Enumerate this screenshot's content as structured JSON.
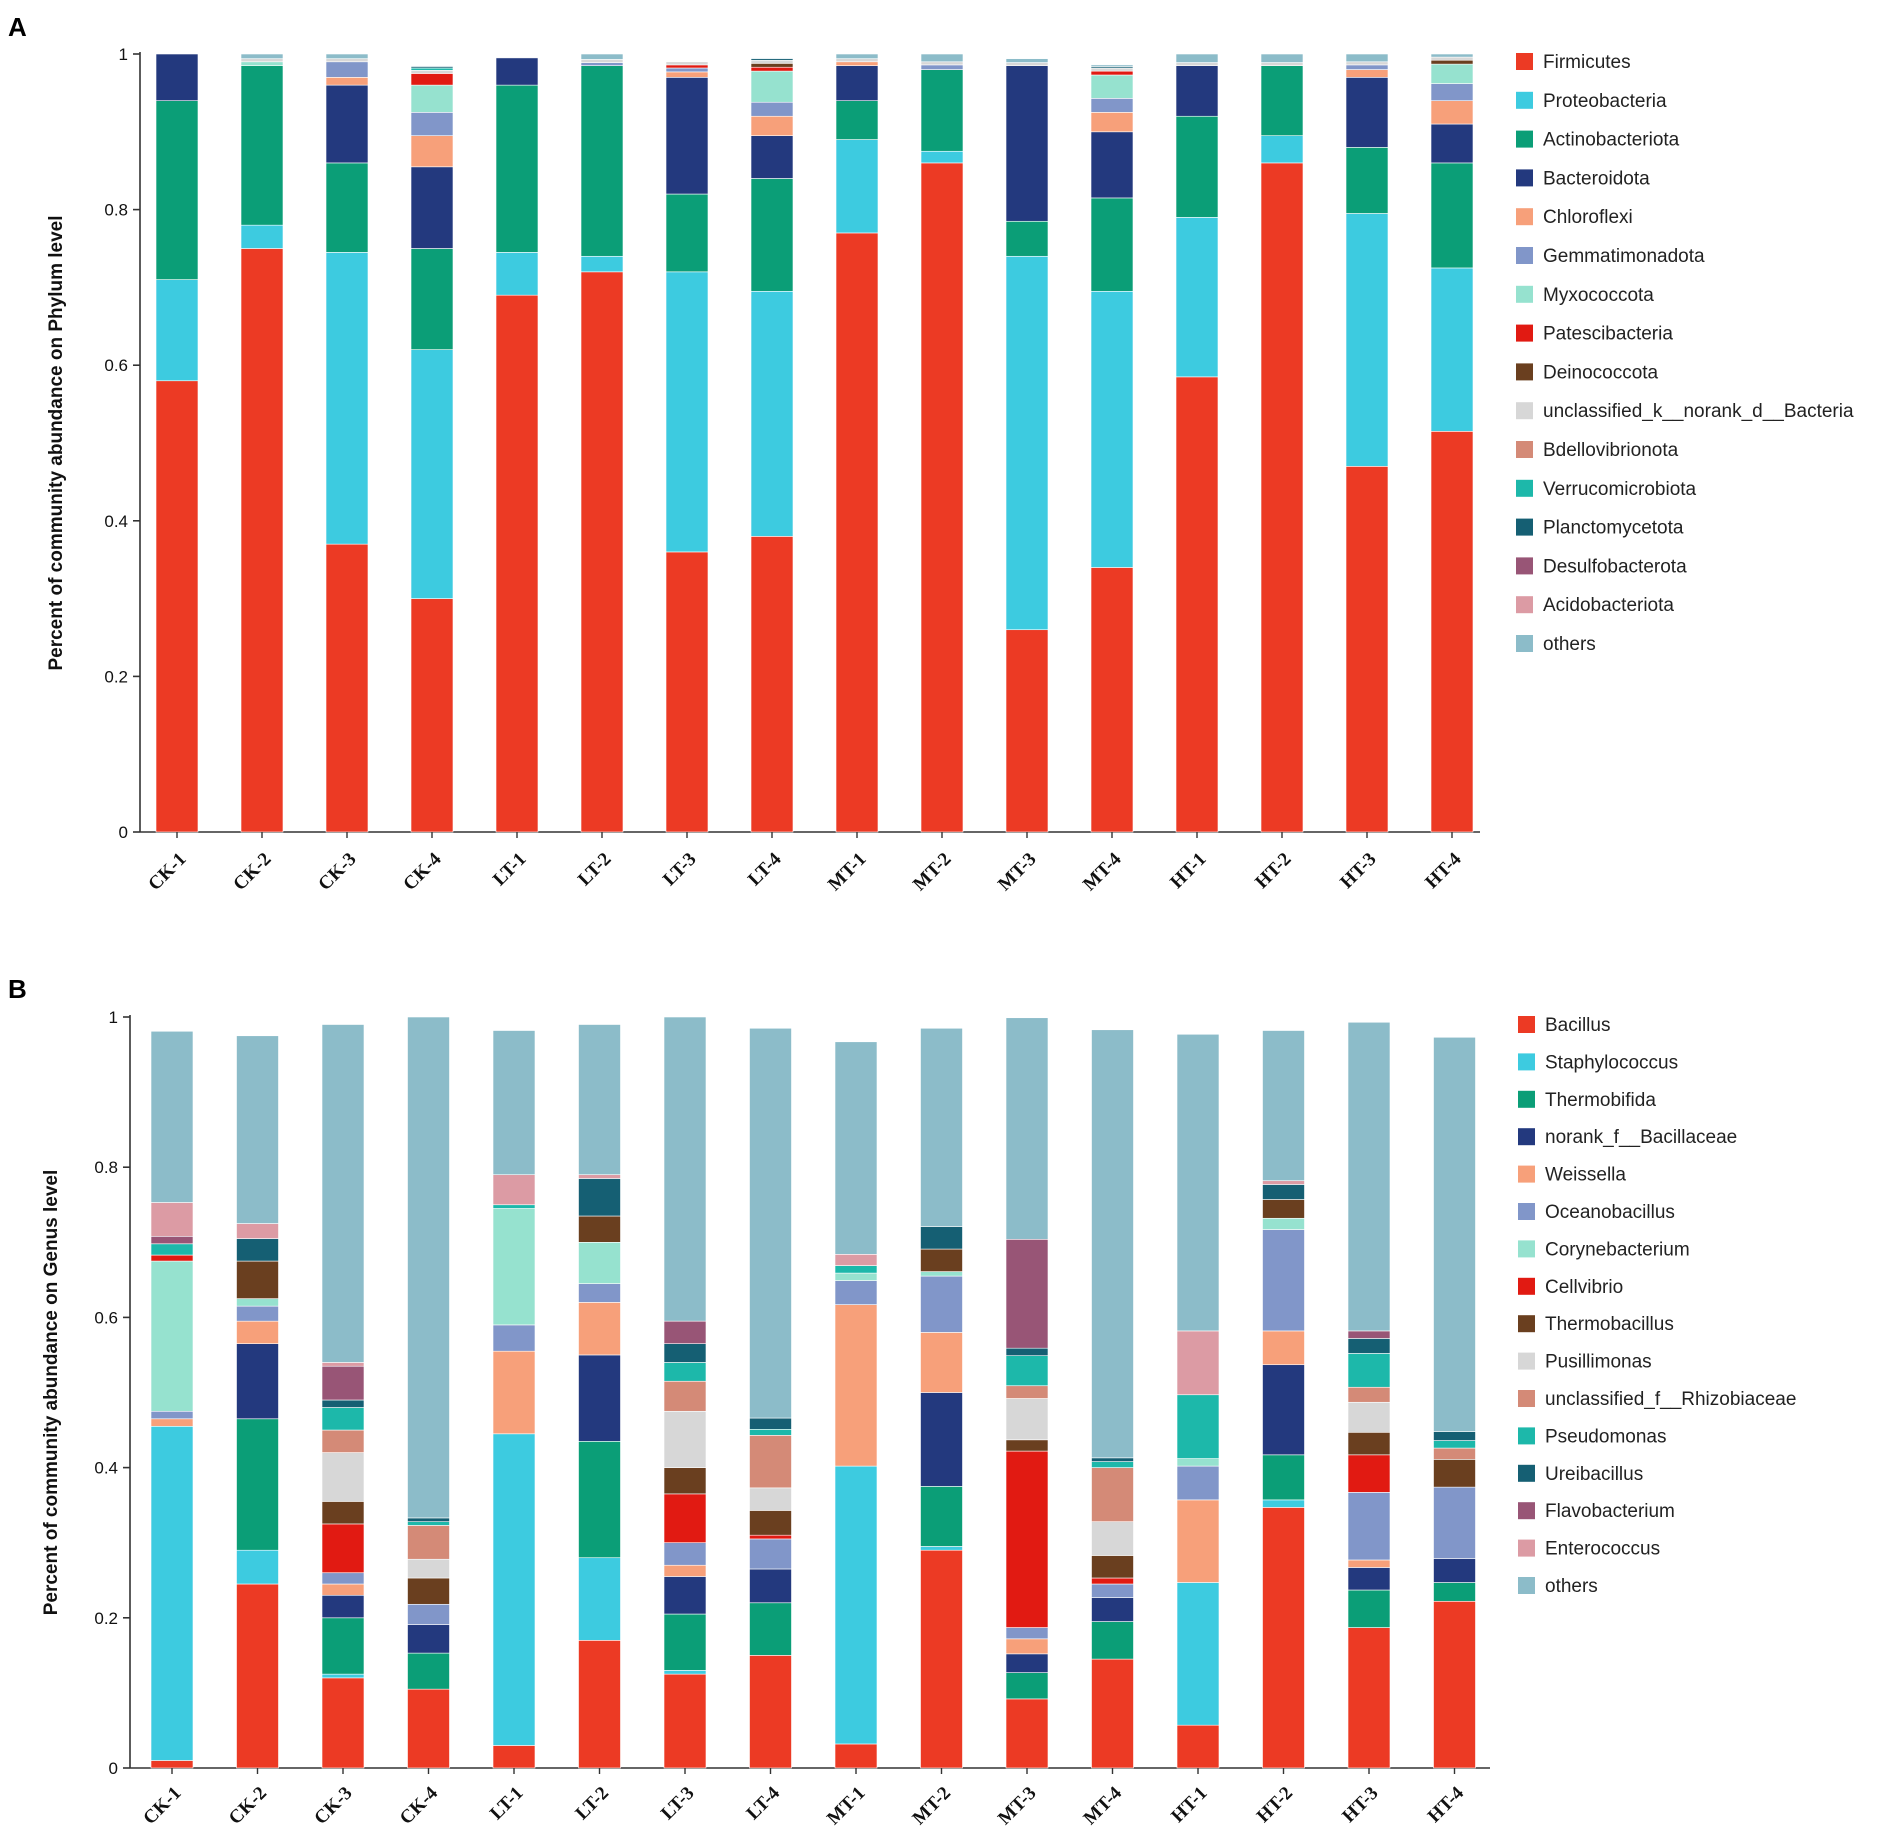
{
  "chart_data": [
    {
      "panel": "A",
      "type": "bar",
      "stacked": true,
      "title": "",
      "xlabel": "",
      "ylabel": "Percent of community abundance on Phylum level",
      "ylim": [
        0,
        1
      ],
      "yticks": [
        0,
        0.2,
        0.4,
        0.6,
        0.8,
        1
      ],
      "ytick_labels": [
        "0",
        "0.2",
        "0.4",
        "0.6",
        "0.8",
        "1"
      ],
      "legend_position": "right",
      "categories": [
        "CK-1",
        "CK-2",
        "CK-3",
        "CK-4",
        "LT-1",
        "LT-2",
        "LT-3",
        "LT-4",
        "MT-1",
        "MT-2",
        "MT-3",
        "MT-4",
        "HT-1",
        "HT-2",
        "HT-3",
        "HT-4"
      ],
      "series": [
        {
          "name": "Firmicutes",
          "color": "#ec3a24",
          "values": [
            0.58,
            0.75,
            0.37,
            0.3,
            0.69,
            0.72,
            0.36,
            0.38,
            0.77,
            0.86,
            0.26,
            0.34,
            0.585,
            0.86,
            0.47,
            0.515
          ]
        },
        {
          "name": "Proteobacteria",
          "color": "#3dcbe0",
          "values": [
            0.13,
            0.03,
            0.375,
            0.32,
            0.055,
            0.02,
            0.36,
            0.315,
            0.12,
            0.015,
            0.48,
            0.355,
            0.205,
            0.035,
            0.325,
            0.21
          ]
        },
        {
          "name": "Actinobacteriota",
          "color": "#0b9e77",
          "values": [
            0.23,
            0.205,
            0.115,
            0.13,
            0.215,
            0.245,
            0.1,
            0.145,
            0.05,
            0.105,
            0.045,
            0.12,
            0.13,
            0.09,
            0.085,
            0.135
          ]
        },
        {
          "name": "Bacteroidota",
          "color": "#23397e",
          "values": [
            0.06,
            0.0,
            0.1,
            0.105,
            0.035,
            0.0,
            0.15,
            0.055,
            0.045,
            0.0,
            0.2,
            0.085,
            0.065,
            0.0,
            0.09,
            0.05
          ]
        },
        {
          "name": "Chloroflexi",
          "color": "#f7a07a",
          "values": [
            0.0,
            0.0,
            0.01,
            0.04,
            0.0,
            0.0,
            0.007,
            0.025,
            0.005,
            0.0,
            0.0,
            0.025,
            0.0,
            0.0,
            0.01,
            0.03
          ]
        },
        {
          "name": "Gemmatimonadota",
          "color": "#8196c9",
          "values": [
            0.0,
            0.0,
            0.02,
            0.03,
            0.0,
            0.004,
            0.005,
            0.018,
            0.0,
            0.006,
            0.0,
            0.018,
            0.0,
            0.0,
            0.006,
            0.022
          ]
        },
        {
          "name": "Myxococcota",
          "color": "#96e2cf",
          "values": [
            0.0,
            0.005,
            0.0,
            0.035,
            0.0,
            0.0,
            0.0,
            0.04,
            0.0,
            0.0,
            0.0,
            0.03,
            0.0,
            0.0,
            0.0,
            0.025
          ]
        },
        {
          "name": "Patescibacteria",
          "color": "#e11a12",
          "values": [
            0.0,
            0.0,
            0.0,
            0.015,
            0.0,
            0.0,
            0.004,
            0.005,
            0.0,
            0.0,
            0.0,
            0.005,
            0.0,
            0.0,
            0.0,
            0.0
          ]
        },
        {
          "name": "Deinococcota",
          "color": "#6a3f1f",
          "values": [
            0.0,
            0.0,
            0.0,
            0.0,
            0.0,
            0.0,
            0.0,
            0.005,
            0.0,
            0.0,
            0.0,
            0.0,
            0.0,
            0.0,
            0.0,
            0.005
          ]
        },
        {
          "name": "unclassified_k__norank_d__Bacteria",
          "color": "#d7d7d7",
          "values": [
            0.0,
            0.004,
            0.004,
            0.004,
            0.0,
            0.004,
            0.004,
            0.004,
            0.004,
            0.004,
            0.004,
            0.004,
            0.004,
            0.004,
            0.004,
            0.004
          ]
        },
        {
          "name": "Bdellovibrionota",
          "color": "#d48a77",
          "values": [
            0.0,
            0.0,
            0.0,
            0.0,
            0.0,
            0.0,
            0.0,
            0.0,
            0.0,
            0.0,
            0.0,
            0.0,
            0.0,
            0.0,
            0.0,
            0.0
          ]
        },
        {
          "name": "Verrucomicrobiota",
          "color": "#1db8aa",
          "values": [
            0.0,
            0.0,
            0.0,
            0.003,
            0.0,
            0.0,
            0.0,
            0.0,
            0.0,
            0.0,
            0.0,
            0.0,
            0.0,
            0.0,
            0.0,
            0.0
          ]
        },
        {
          "name": "Planctomycetota",
          "color": "#155f73",
          "values": [
            0.0,
            0.0,
            0.0,
            0.002,
            0.0,
            0.0,
            0.0,
            0.002,
            0.0,
            0.0,
            0.0,
            0.002,
            0.0,
            0.0,
            0.0,
            0.0
          ]
        },
        {
          "name": "Desulfobacterota",
          "color": "#985576",
          "values": [
            0.0,
            0.0,
            0.0,
            0.0,
            0.0,
            0.0,
            0.0,
            0.0,
            0.0,
            0.0,
            0.0,
            0.0,
            0.0,
            0.0,
            0.0,
            0.0
          ]
        },
        {
          "name": "Acidobacteriota",
          "color": "#dc9ba4",
          "values": [
            0.0,
            0.0,
            0.0,
            0.0,
            0.0,
            0.0,
            0.0,
            0.0,
            0.0,
            0.0,
            0.0,
            0.0,
            0.0,
            0.0,
            0.0,
            0.0
          ]
        },
        {
          "name": "others",
          "color": "#8cbcc9",
          "values": [
            0.0,
            0.006,
            0.006,
            0.001,
            0.0,
            0.007,
            0.0,
            0.001,
            0.006,
            0.01,
            0.005,
            0.002,
            0.011,
            0.011,
            0.01,
            0.004
          ]
        }
      ]
    },
    {
      "panel": "B",
      "type": "bar",
      "stacked": true,
      "title": "",
      "xlabel": "",
      "ylabel": "Percent of community abundance on Genus level",
      "ylim": [
        0,
        1
      ],
      "yticks": [
        0,
        0.2,
        0.4,
        0.6,
        0.8,
        1
      ],
      "ytick_labels": [
        "0",
        "0.2",
        "0.4",
        "0.6",
        "0.8",
        "1"
      ],
      "legend_position": "right",
      "categories": [
        "CK-1",
        "CK-2",
        "CK-3",
        "CK-4",
        "LT-1",
        "LT-2",
        "LT-3",
        "LT-4",
        "MT-1",
        "MT-2",
        "MT-3",
        "MT-4",
        "HT-1",
        "HT-2",
        "HT-3",
        "HT-4"
      ],
      "series": [
        {
          "name": "Bacillus",
          "color": "#ec3a24",
          "values": [
            0.01,
            0.245,
            0.12,
            0.105,
            0.03,
            0.17,
            0.125,
            0.15,
            0.032,
            0.29,
            0.092,
            0.145,
            0.057,
            0.347,
            0.187,
            0.222
          ]
        },
        {
          "name": "Staphylococcus",
          "color": "#3dcbe0",
          "values": [
            0.445,
            0.045,
            0.005,
            0.0,
            0.415,
            0.11,
            0.005,
            0.0,
            0.37,
            0.005,
            0.0,
            0.0,
            0.19,
            0.01,
            0.0,
            0.0
          ]
        },
        {
          "name": "Thermobifida",
          "color": "#0b9e77",
          "values": [
            0.0,
            0.175,
            0.075,
            0.048,
            0.0,
            0.155,
            0.075,
            0.07,
            0.0,
            0.08,
            0.035,
            0.05,
            0.0,
            0.06,
            0.05,
            0.025
          ]
        },
        {
          "name": "norank_f__Bacillaceae",
          "color": "#23397e",
          "values": [
            0.0,
            0.1,
            0.03,
            0.038,
            0.0,
            0.115,
            0.05,
            0.045,
            0.0,
            0.125,
            0.025,
            0.032,
            0.0,
            0.12,
            0.03,
            0.032
          ]
        },
        {
          "name": "Weissella",
          "color": "#f7a07a",
          "values": [
            0.01,
            0.03,
            0.015,
            0.0,
            0.11,
            0.07,
            0.015,
            0.0,
            0.215,
            0.08,
            0.02,
            0.0,
            0.11,
            0.045,
            0.01,
            0.0
          ]
        },
        {
          "name": "Oceanobacillus",
          "color": "#8196c9",
          "values": [
            0.01,
            0.02,
            0.015,
            0.027,
            0.035,
            0.025,
            0.03,
            0.04,
            0.032,
            0.075,
            0.015,
            0.018,
            0.045,
            0.135,
            0.09,
            0.095
          ]
        },
        {
          "name": "Corynebacterium",
          "color": "#96e2cf",
          "values": [
            0.2,
            0.01,
            0.0,
            0.0,
            0.155,
            0.055,
            0.0,
            0.0,
            0.01,
            0.006,
            0.0,
            0.0,
            0.01,
            0.015,
            0.0,
            0.0
          ]
        },
        {
          "name": "Cellvibrio",
          "color": "#e11a12",
          "values": [
            0.008,
            0.0,
            0.065,
            0.0,
            0.0,
            0.0,
            0.065,
            0.005,
            0.0,
            0.0,
            0.235,
            0.008,
            0.0,
            0.0,
            0.05,
            0.0
          ]
        },
        {
          "name": "Thermobacillus",
          "color": "#6a3f1f",
          "values": [
            0.0,
            0.05,
            0.03,
            0.035,
            0.0,
            0.035,
            0.035,
            0.033,
            0.0,
            0.03,
            0.015,
            0.03,
            0.0,
            0.025,
            0.03,
            0.037
          ]
        },
        {
          "name": "Pusillimonas",
          "color": "#d7d7d7",
          "values": [
            0.0,
            0.0,
            0.065,
            0.025,
            0.0,
            0.0,
            0.075,
            0.03,
            0.0,
            0.0,
            0.055,
            0.045,
            0.0,
            0.0,
            0.04,
            0.0
          ]
        },
        {
          "name": "unclassified_f__Rhizobiaceae",
          "color": "#d48a77",
          "values": [
            0.0,
            0.0,
            0.03,
            0.045,
            0.0,
            0.0,
            0.04,
            0.07,
            0.0,
            0.0,
            0.017,
            0.072,
            0.0,
            0.0,
            0.02,
            0.015
          ]
        },
        {
          "name": "Pseudomonas",
          "color": "#1db8aa",
          "values": [
            0.015,
            0.0,
            0.03,
            0.005,
            0.005,
            0.0,
            0.025,
            0.008,
            0.01,
            0.0,
            0.04,
            0.008,
            0.085,
            0.0,
            0.045,
            0.01
          ]
        },
        {
          "name": "Ureibacillus",
          "color": "#155f73",
          "values": [
            0.0,
            0.03,
            0.01,
            0.005,
            0.0,
            0.05,
            0.025,
            0.015,
            0.0,
            0.03,
            0.01,
            0.005,
            0.0,
            0.02,
            0.02,
            0.012
          ]
        },
        {
          "name": "Flavobacterium",
          "color": "#985576",
          "values": [
            0.01,
            0.0,
            0.045,
            0.0,
            0.0,
            0.0,
            0.03,
            0.0,
            0.0,
            0.0,
            0.145,
            0.0,
            0.0,
            0.0,
            0.01,
            0.0
          ]
        },
        {
          "name": "Enterococcus",
          "color": "#dc9ba4",
          "values": [
            0.045,
            0.02,
            0.005,
            0.0,
            0.04,
            0.005,
            0.0,
            0.0,
            0.015,
            0.0,
            0.0,
            0.0,
            0.085,
            0.005,
            0.0,
            0.0
          ]
        },
        {
          "name": "others",
          "color": "#8cbcc9",
          "values": [
            0.228,
            0.25,
            0.45,
            0.667,
            0.192,
            0.2,
            0.405,
            0.519,
            0.283,
            0.264,
            0.295,
            0.57,
            0.395,
            0.2,
            0.411,
            0.525
          ]
        }
      ]
    }
  ]
}
